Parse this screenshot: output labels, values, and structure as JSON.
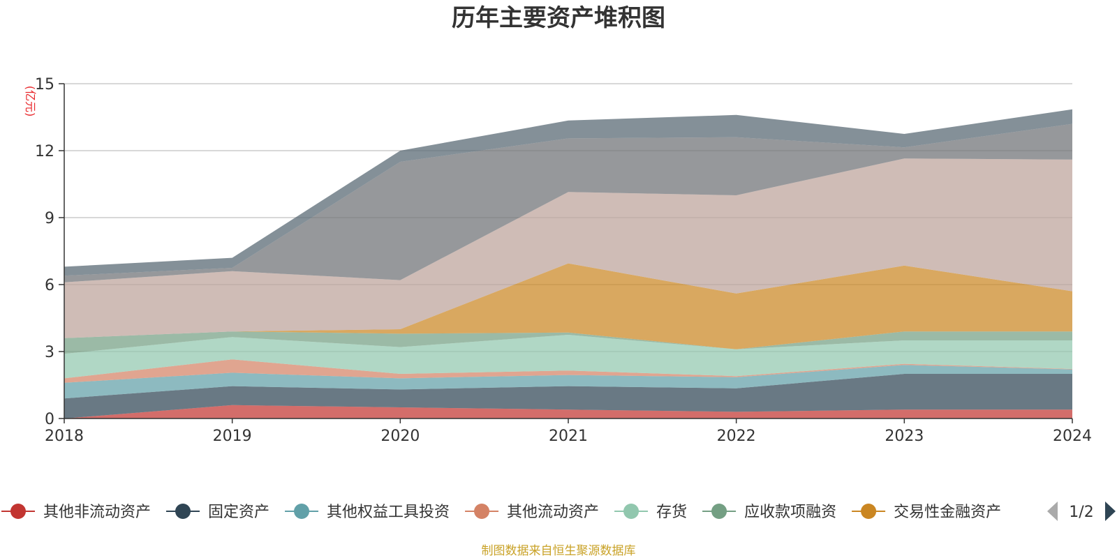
{
  "chart_data": {
    "type": "area",
    "stacked": true,
    "title": "历年主要资产堆积图",
    "unit_label": "亿元",
    "x": [
      "2018",
      "2019",
      "2020",
      "2021",
      "2022",
      "2023",
      "2024"
    ],
    "ylim": [
      0,
      15
    ],
    "yticks": [
      0,
      3,
      6,
      9,
      12,
      15
    ],
    "grid": true,
    "series": [
      {
        "name": "其他非流动资产",
        "color": "#c23531",
        "values": [
          0.0,
          0.6,
          0.5,
          0.4,
          0.3,
          0.4,
          0.4
        ]
      },
      {
        "name": "固定资产",
        "color": "#2f4554",
        "values": [
          0.9,
          0.85,
          0.8,
          1.05,
          1.05,
          1.6,
          1.6
        ]
      },
      {
        "name": "其他权益工具投资",
        "color": "#61a0a8",
        "values": [
          0.7,
          0.6,
          0.5,
          0.5,
          0.5,
          0.4,
          0.2
        ]
      },
      {
        "name": "其他流动资产",
        "color": "#d48265",
        "values": [
          0.2,
          0.6,
          0.2,
          0.2,
          0.05,
          0.05,
          0.02
        ]
      },
      {
        "name": "存货",
        "color": "#91c7ae",
        "values": [
          1.1,
          1.0,
          1.2,
          1.6,
          1.2,
          1.05,
          1.28
        ]
      },
      {
        "name": "应收款项融资",
        "color": "#749f83",
        "values": [
          0.7,
          0.25,
          0.6,
          0.1,
          0.0,
          0.4,
          0.4
        ]
      },
      {
        "name": "交易性金融资产",
        "color": "#ca8622",
        "values": [
          0.0,
          0.0,
          0.2,
          3.1,
          2.5,
          2.95,
          1.8
        ]
      },
      {
        "name": "",
        "color": "#bda29a",
        "values": [
          2.5,
          2.7,
          2.2,
          3.2,
          4.4,
          4.8,
          5.9
        ]
      },
      {
        "name": "",
        "color": "#6e7074",
        "values": [
          0.3,
          0.15,
          5.3,
          2.4,
          2.6,
          0.5,
          1.6
        ]
      },
      {
        "name": "",
        "color": "#546570",
        "values": [
          0.4,
          0.45,
          0.5,
          0.8,
          1.0,
          0.6,
          0.65
        ]
      }
    ],
    "legend": {
      "position": "bottom",
      "items": [
        "其他非流动资产",
        "固定资产",
        "其他权益工具投资",
        "其他流动资产",
        "存货",
        "应收款项融资",
        "交易性金融资产"
      ],
      "page": "1/2"
    },
    "source": "制图数据来自恒生聚源数据库"
  },
  "colors": {
    "unit_label": "#e8262a",
    "source": "#c9a227",
    "axis": "#333333",
    "grid": "#cccccc"
  },
  "icons": {
    "prev": "triangle-left-icon",
    "next": "triangle-right-icon",
    "legend_marker": "circle-line-marker"
  }
}
